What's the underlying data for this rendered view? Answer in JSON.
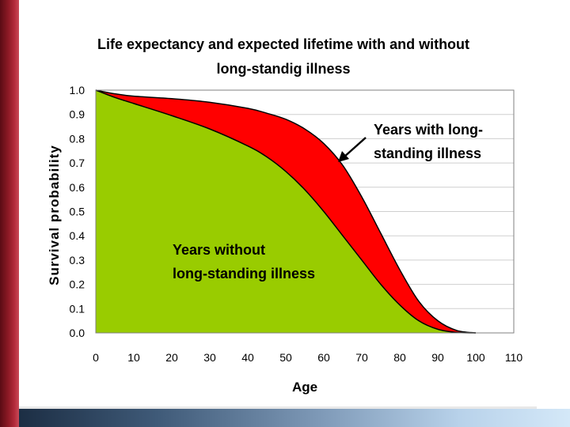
{
  "chart_data": {
    "type": "area",
    "title_lines": [
      "Life expectancy and expected lifetime with and without",
      "long-standig illness"
    ],
    "xlabel": "Age",
    "ylabel": "Survival probability",
    "xlim": [
      0,
      110
    ],
    "ylim": [
      0.0,
      1.0
    ],
    "x_ticks": [
      0,
      10,
      20,
      30,
      40,
      50,
      60,
      70,
      80,
      90,
      100,
      110
    ],
    "y_ticks": [
      "1.0",
      "0.9",
      "0.8",
      "0.7",
      "0.6",
      "0.5",
      "0.4",
      "0.3",
      "0.2",
      "0.1",
      "0.0"
    ],
    "y_tick_values": [
      1.0,
      0.9,
      0.8,
      0.7,
      0.6,
      0.5,
      0.4,
      0.3,
      0.2,
      0.1,
      0.0
    ],
    "grid": "horizontal",
    "series": [
      {
        "label_lines": [
          "Years with long-",
          "standing illness"
        ],
        "color": "#ff0000",
        "x": [
          0,
          5,
          10,
          20,
          30,
          40,
          45,
          50,
          55,
          60,
          65,
          70,
          75,
          80,
          85,
          90,
          95,
          100
        ],
        "y": [
          1.0,
          0.985,
          0.975,
          0.965,
          0.95,
          0.925,
          0.905,
          0.88,
          0.84,
          0.78,
          0.69,
          0.56,
          0.41,
          0.26,
          0.13,
          0.05,
          0.01,
          0.0
        ]
      },
      {
        "label_lines": [
          "Years without",
          "long-standing illness"
        ],
        "color": "#99cc00",
        "x": [
          0,
          5,
          10,
          20,
          30,
          40,
          45,
          50,
          55,
          60,
          65,
          70,
          75,
          80,
          85,
          90,
          95,
          100
        ],
        "y": [
          1.0,
          0.97,
          0.945,
          0.895,
          0.84,
          0.77,
          0.725,
          0.665,
          0.59,
          0.5,
          0.4,
          0.3,
          0.2,
          0.115,
          0.05,
          0.015,
          0.002,
          0.0
        ]
      }
    ]
  }
}
